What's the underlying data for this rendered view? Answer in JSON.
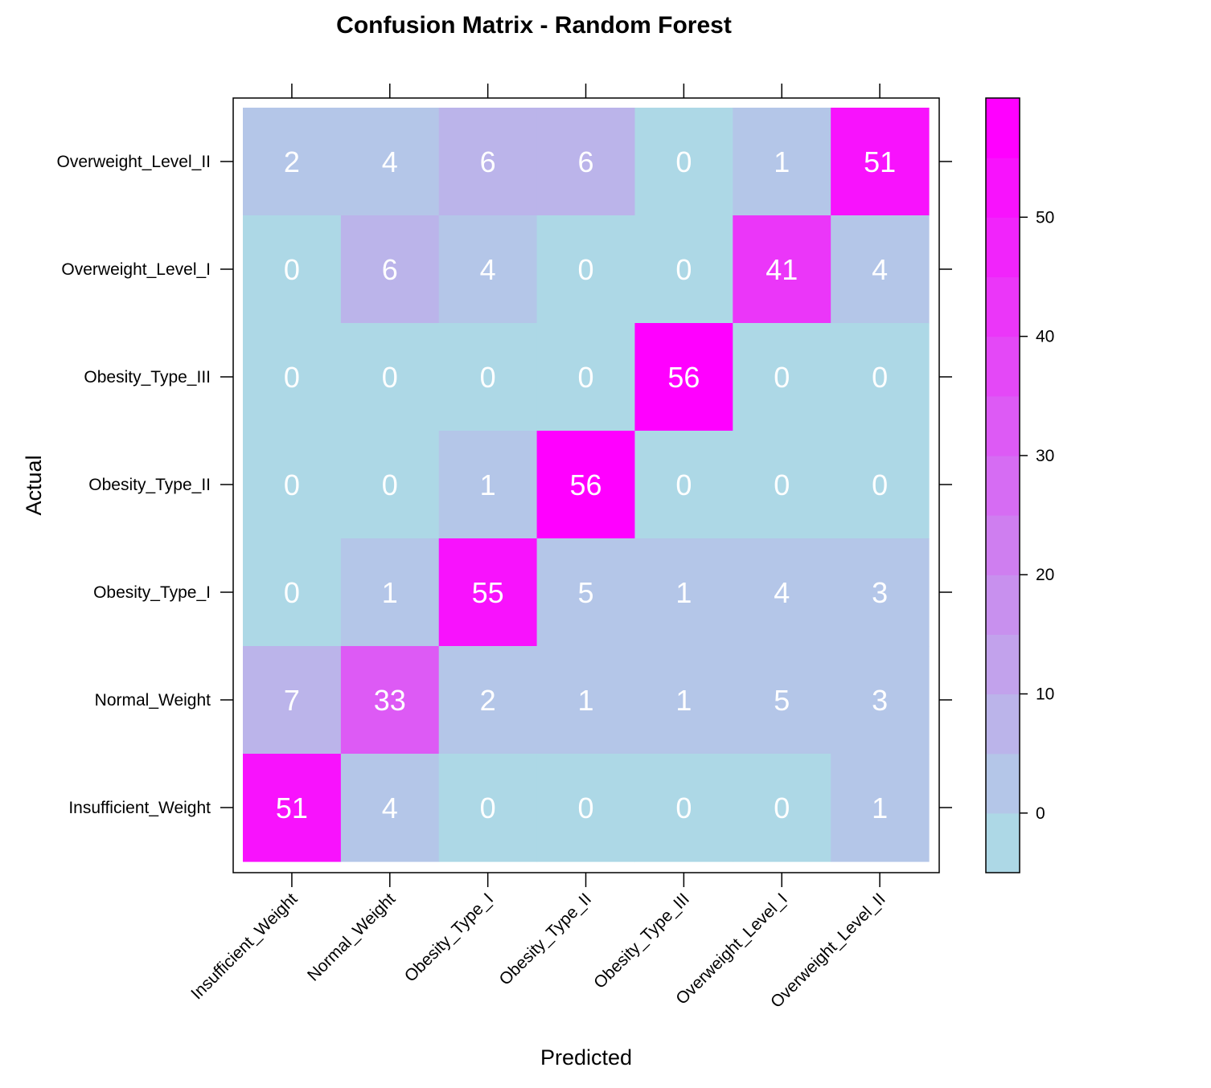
{
  "chart_data": {
    "type": "heatmap",
    "title": "Confusion Matrix - Random Forest",
    "xlabel": "Predicted",
    "ylabel": "Actual",
    "x_categories": [
      "Insufficient_Weight",
      "Normal_Weight",
      "Obesity_Type_I",
      "Obesity_Type_II",
      "Obesity_Type_III",
      "Overweight_Level_I",
      "Overweight_Level_II"
    ],
    "y_categories_top_to_bottom": [
      "Overweight_Level_II",
      "Overweight_Level_I",
      "Obesity_Type_III",
      "Obesity_Type_II",
      "Obesity_Type_I",
      "Normal_Weight",
      "Insufficient_Weight"
    ],
    "matrix_top_to_bottom": [
      [
        2,
        4,
        6,
        6,
        0,
        1,
        51
      ],
      [
        0,
        6,
        4,
        0,
        0,
        41,
        4
      ],
      [
        0,
        0,
        0,
        0,
        56,
        0,
        0
      ],
      [
        0,
        0,
        1,
        56,
        0,
        0,
        0
      ],
      [
        0,
        1,
        55,
        5,
        1,
        4,
        3
      ],
      [
        7,
        33,
        2,
        1,
        1,
        5,
        3
      ],
      [
        51,
        4,
        0,
        0,
        0,
        0,
        1
      ]
    ],
    "colorbar": {
      "range": [
        -5,
        60
      ],
      "breaks": [
        -5,
        0,
        5,
        10,
        15,
        20,
        25,
        30,
        35,
        40,
        45,
        50,
        55,
        60
      ],
      "ticks": [
        0,
        10,
        20,
        30,
        40,
        50
      ],
      "low_color": "#add8e6",
      "high_color": "#ff00ff"
    },
    "grid": false,
    "legend": "right colorbar"
  }
}
